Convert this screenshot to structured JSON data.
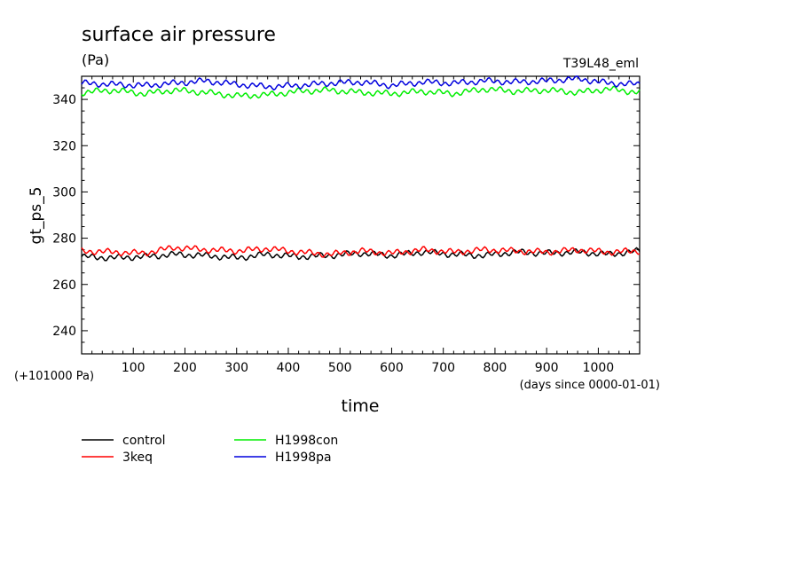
{
  "chart_data": {
    "type": "line",
    "title": "surface air pressure",
    "units": "(Pa)",
    "experiment": "T39L48_eml",
    "ylabel": "gt_ps_5",
    "xlabel": "time",
    "y_offset_note": "(+101000 Pa)",
    "x_units_note": "(days since 0000-01-01)",
    "xlim": [
      0,
      1080
    ],
    "ylim": [
      230,
      350
    ],
    "x_ticks": [
      100,
      200,
      300,
      400,
      500,
      600,
      700,
      800,
      900,
      1000
    ],
    "x_tick_labels": [
      "100",
      "200",
      "300",
      "400",
      "500",
      "600",
      "700",
      "800",
      "900",
      "1000"
    ],
    "y_ticks": [
      240,
      260,
      280,
      300,
      320,
      340
    ],
    "y_tick_labels": [
      "240",
      "260",
      "280",
      "300",
      "320",
      "340"
    ],
    "x": [
      0,
      60,
      120,
      180,
      240,
      300,
      360,
      420,
      480,
      540,
      600,
      660,
      720,
      780,
      840,
      900,
      960,
      1020,
      1080
    ],
    "series": [
      {
        "name": "control",
        "color": "#000000",
        "values": [
          272,
          271.5,
          272,
          273,
          272.5,
          271.5,
          273,
          272,
          272.5,
          273.5,
          272.5,
          274,
          273,
          272.5,
          274,
          273.5,
          274,
          273,
          274.5
        ]
      },
      {
        "name": "3keq",
        "color": "#ff0000",
        "values": [
          274.5,
          274,
          273.5,
          276,
          275,
          274.5,
          275.5,
          274,
          273,
          274.5,
          273.5,
          275,
          274,
          275,
          274.5,
          274,
          275,
          274,
          274.5
        ]
      },
      {
        "name": "H1998con",
        "color": "#00ee00",
        "values": [
          343,
          344,
          342.5,
          344,
          343,
          341.5,
          342,
          343.5,
          344,
          343,
          342.5,
          343.5,
          342.5,
          344.5,
          343.5,
          344,
          343,
          344.5,
          343
        ]
      },
      {
        "name": "H1998pa",
        "color": "#0000dd",
        "values": [
          347,
          346.5,
          346,
          347,
          348,
          346.5,
          345.5,
          346,
          347,
          347.5,
          346,
          347.5,
          347,
          348,
          347.5,
          348,
          349,
          347,
          346.5
        ]
      }
    ],
    "legend_position": "bottom-left"
  }
}
